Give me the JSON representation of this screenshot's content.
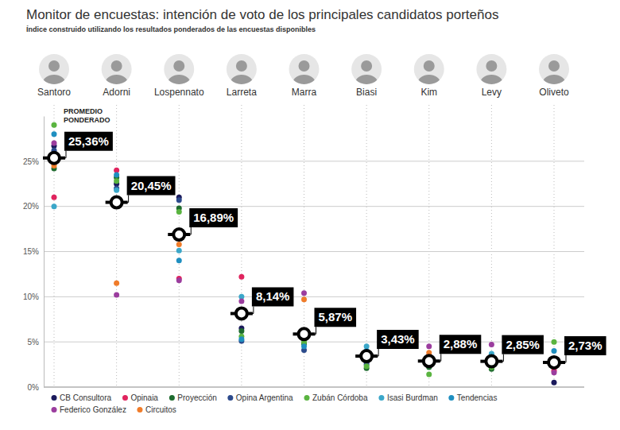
{
  "chart_data": {
    "type": "dot",
    "title": "Monitor de encuestas: intención de voto de los principales candidatos porteños",
    "subtitle": "Índice construido utilizando los resultados ponderados de las encuestas disponibles",
    "categories": [
      "Santoro",
      "Adorni",
      "Lospennato",
      "Larreta",
      "Marra",
      "Biasi",
      "Kim",
      "Levy",
      "Oliveto"
    ],
    "ylim": [
      0,
      30
    ],
    "yticks": [
      {
        "value": 0,
        "label": "0%"
      },
      {
        "value": 5,
        "label": "5%"
      },
      {
        "value": 10,
        "label": "10%"
      },
      {
        "value": 15,
        "label": "15%"
      },
      {
        "value": 20,
        "label": "20%"
      },
      {
        "value": 25,
        "label": "25%"
      }
    ],
    "grid": true,
    "legend": "bottom",
    "data_labels": true,
    "series": [
      {
        "name": "CB Consultora",
        "color": "#1b1a5c",
        "marker": "circle",
        "values": [
          26.7,
          22.5,
          21,
          6.5,
          5.5,
          2.8,
          2.5,
          2.4,
          0.5
        ]
      },
      {
        "name": "Opinaia",
        "color": "#e0245e",
        "marker": "circle",
        "values": [
          21,
          24,
          12,
          12.2,
          6.2,
          3.2,
          3.5,
          3.5,
          1.8
        ]
      },
      {
        "name": "Proyección",
        "color": "#1e6b2e",
        "marker": "circle",
        "values": [
          24.2,
          23.2,
          19.8,
          6.2,
          4.8,
          2.1,
          2.2,
          2,
          2.3
        ]
      },
      {
        "name": "Opina Argentina",
        "color": "#2c4a8c",
        "marker": "circle",
        "values": [
          26.2,
          22,
          20.7,
          5.1,
          4.1,
          2.5,
          2.8,
          3.2,
          2.5
        ]
      },
      {
        "name": "Zubán Córdoba",
        "color": "#5ab440",
        "marker": "circle",
        "values": [
          29,
          22.8,
          19.4,
          5.6,
          5,
          2.3,
          1.4,
          2.2,
          5
        ]
      },
      {
        "name": "Isasi Burdman",
        "color": "#3ba7c9",
        "marker": "circle",
        "values": [
          20,
          21.8,
          15.1,
          10,
          6,
          4.5,
          3,
          3.7,
          3
        ]
      },
      {
        "name": "Tendencias",
        "color": "#1f8fc0",
        "marker": "circle",
        "values": [
          28,
          23.5,
          14,
          5.3,
          4.5,
          4,
          2.6,
          2.8,
          4
        ]
      },
      {
        "name": "Federico González",
        "color": "#9b3d9e",
        "marker": "circle",
        "values": [
          27,
          10.2,
          11.8,
          9.5,
          10.4,
          3.8,
          4.5,
          4.7,
          1.6
        ]
      },
      {
        "name": "Circuitos",
        "color": "#f07c2a",
        "marker": "circle",
        "values": [
          24.5,
          11.5,
          15.8,
          8.3,
          9.7,
          3.5,
          3.8,
          2.5,
          2.8
        ]
      }
    ],
    "average": {
      "name": "PROMEDIO PONDERADO",
      "color": "#000000",
      "marker": "ring",
      "values": [
        25.36,
        20.45,
        16.89,
        8.14,
        5.87,
        3.43,
        2.88,
        2.85,
        2.73
      ],
      "value_labels": [
        "25,36%",
        "20,45%",
        "16,89%",
        "8,14%",
        "5,87%",
        "3,43%",
        "2,88%",
        "2,85%",
        "2,73%"
      ]
    }
  }
}
